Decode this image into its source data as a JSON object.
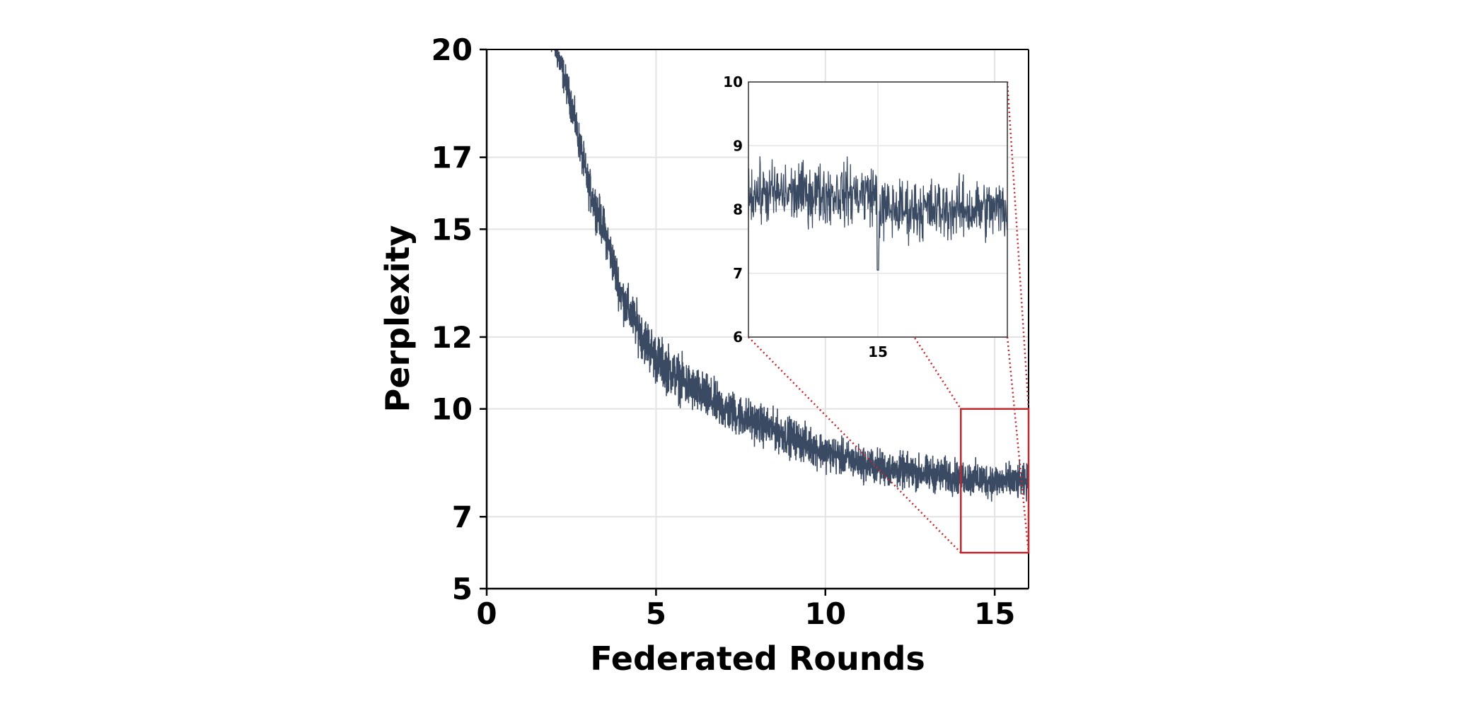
{
  "chart_data": {
    "type": "line",
    "title": "",
    "xlabel": "Federated Rounds",
    "ylabel": "Perplexity",
    "xlim": [
      0,
      16
    ],
    "ylim": [
      5,
      20
    ],
    "xticks": [
      0,
      5,
      10,
      15
    ],
    "yticks": [
      5,
      7,
      10,
      12,
      15,
      17,
      20
    ],
    "ytick_labels": [
      "5",
      "7",
      "10",
      "12",
      "15",
      "17",
      "20"
    ],
    "grid": true,
    "legend": "none",
    "series": [
      {
        "color": "#3b4a63",
        "trend": {
          "x": [
            1.8,
            2.0,
            2.5,
            3.0,
            3.5,
            4.0,
            4.5,
            5.0,
            6.0,
            7.0,
            8.0,
            9.0,
            10.0,
            11.0,
            12.0,
            13.0,
            14.0,
            15.0,
            16.0
          ],
          "y": [
            20.5,
            20.2,
            18.5,
            16.2,
            14.9,
            13.1,
            12.2,
            11.4,
            10.6,
            10.0,
            9.6,
            9.2,
            8.8,
            8.5,
            8.3,
            8.2,
            8.1,
            8.0,
            7.95
          ]
        },
        "noise_band": {
          "x": [
            1.8,
            3.0,
            5.0,
            8.0,
            11.0,
            16.0
          ],
          "half_width": [
            0.6,
            0.8,
            1.0,
            0.8,
            0.7,
            0.7
          ]
        }
      }
    ],
    "zoom_box": {
      "xlim": [
        14,
        16
      ],
      "ylim": [
        6,
        10
      ],
      "color": "#c0282d"
    },
    "inset": {
      "xlim": [
        14,
        16
      ],
      "ylim": [
        6,
        10
      ],
      "xticks": [
        15
      ],
      "yticks": [
        6,
        7,
        8,
        9,
        10
      ],
      "level_before": 8.25,
      "level_after": 8.0,
      "break_at": 15.0,
      "noise_half_width": 0.7
    }
  }
}
